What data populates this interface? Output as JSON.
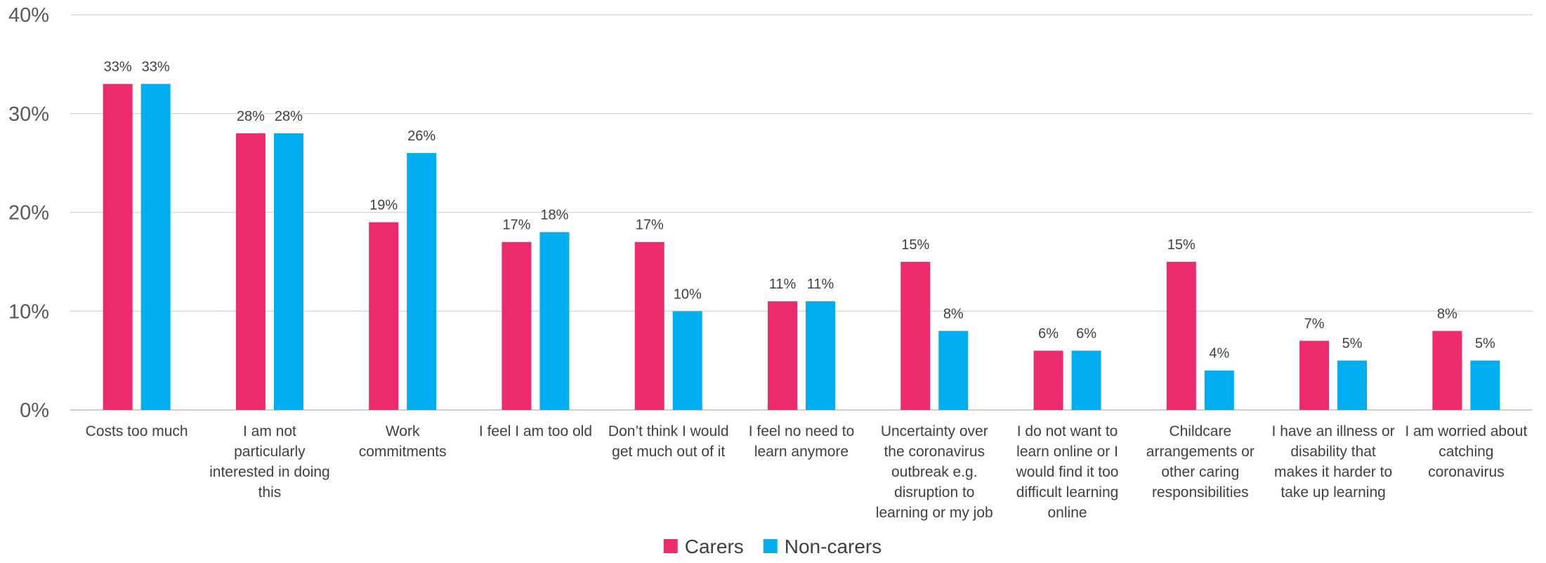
{
  "chart_data": {
    "type": "bar",
    "title": "",
    "xlabel": "",
    "ylabel": "",
    "ylim": [
      0,
      40
    ],
    "yticks": [
      {
        "value": 0,
        "label": "0%"
      },
      {
        "value": 10,
        "label": "10%"
      },
      {
        "value": 20,
        "label": "20%"
      },
      {
        "value": 30,
        "label": "30%"
      },
      {
        "value": 40,
        "label": "40%"
      }
    ],
    "grid": true,
    "legend_position": "bottom",
    "categories": [
      [
        "Costs too much"
      ],
      [
        "I am not",
        "particularly",
        "interested in doing",
        "this"
      ],
      [
        "Work",
        "commitments"
      ],
      [
        "I feel I am too old"
      ],
      [
        "Don’t think I would",
        "get much out of it"
      ],
      [
        "I feel no need to",
        "learn anymore"
      ],
      [
        "Uncertainty over",
        "the coronavirus",
        "outbreak e.g.",
        "disruption to",
        "learning or my job"
      ],
      [
        "I do not want to",
        "learn online or I",
        "would find it too",
        "difficult learning",
        "online"
      ],
      [
        "Childcare",
        "arrangements or",
        "other caring",
        "responsibilities"
      ],
      [
        "I have an illness or",
        "disability that",
        "makes it harder to",
        "take up learning"
      ],
      [
        "I am worried about",
        "catching",
        "coronavirus"
      ]
    ],
    "series": [
      {
        "name": "Carers",
        "color": "#EE2A6E",
        "values": [
          33,
          28,
          19,
          17,
          17,
          11,
          15,
          6,
          15,
          7,
          8
        ],
        "labels": [
          "33%",
          "28%",
          "19%",
          "17%",
          "17%",
          "11%",
          "15%",
          "6%",
          "15%",
          "7%",
          "8%"
        ]
      },
      {
        "name": "Non-carers",
        "color": "#00AEEF",
        "values": [
          33,
          28,
          26,
          18,
          10,
          11,
          8,
          6,
          4,
          5,
          5
        ],
        "labels": [
          "33%",
          "28%",
          "26%",
          "18%",
          "10%",
          "11%",
          "8%",
          "6%",
          "4%",
          "5%",
          "5%"
        ]
      }
    ]
  }
}
